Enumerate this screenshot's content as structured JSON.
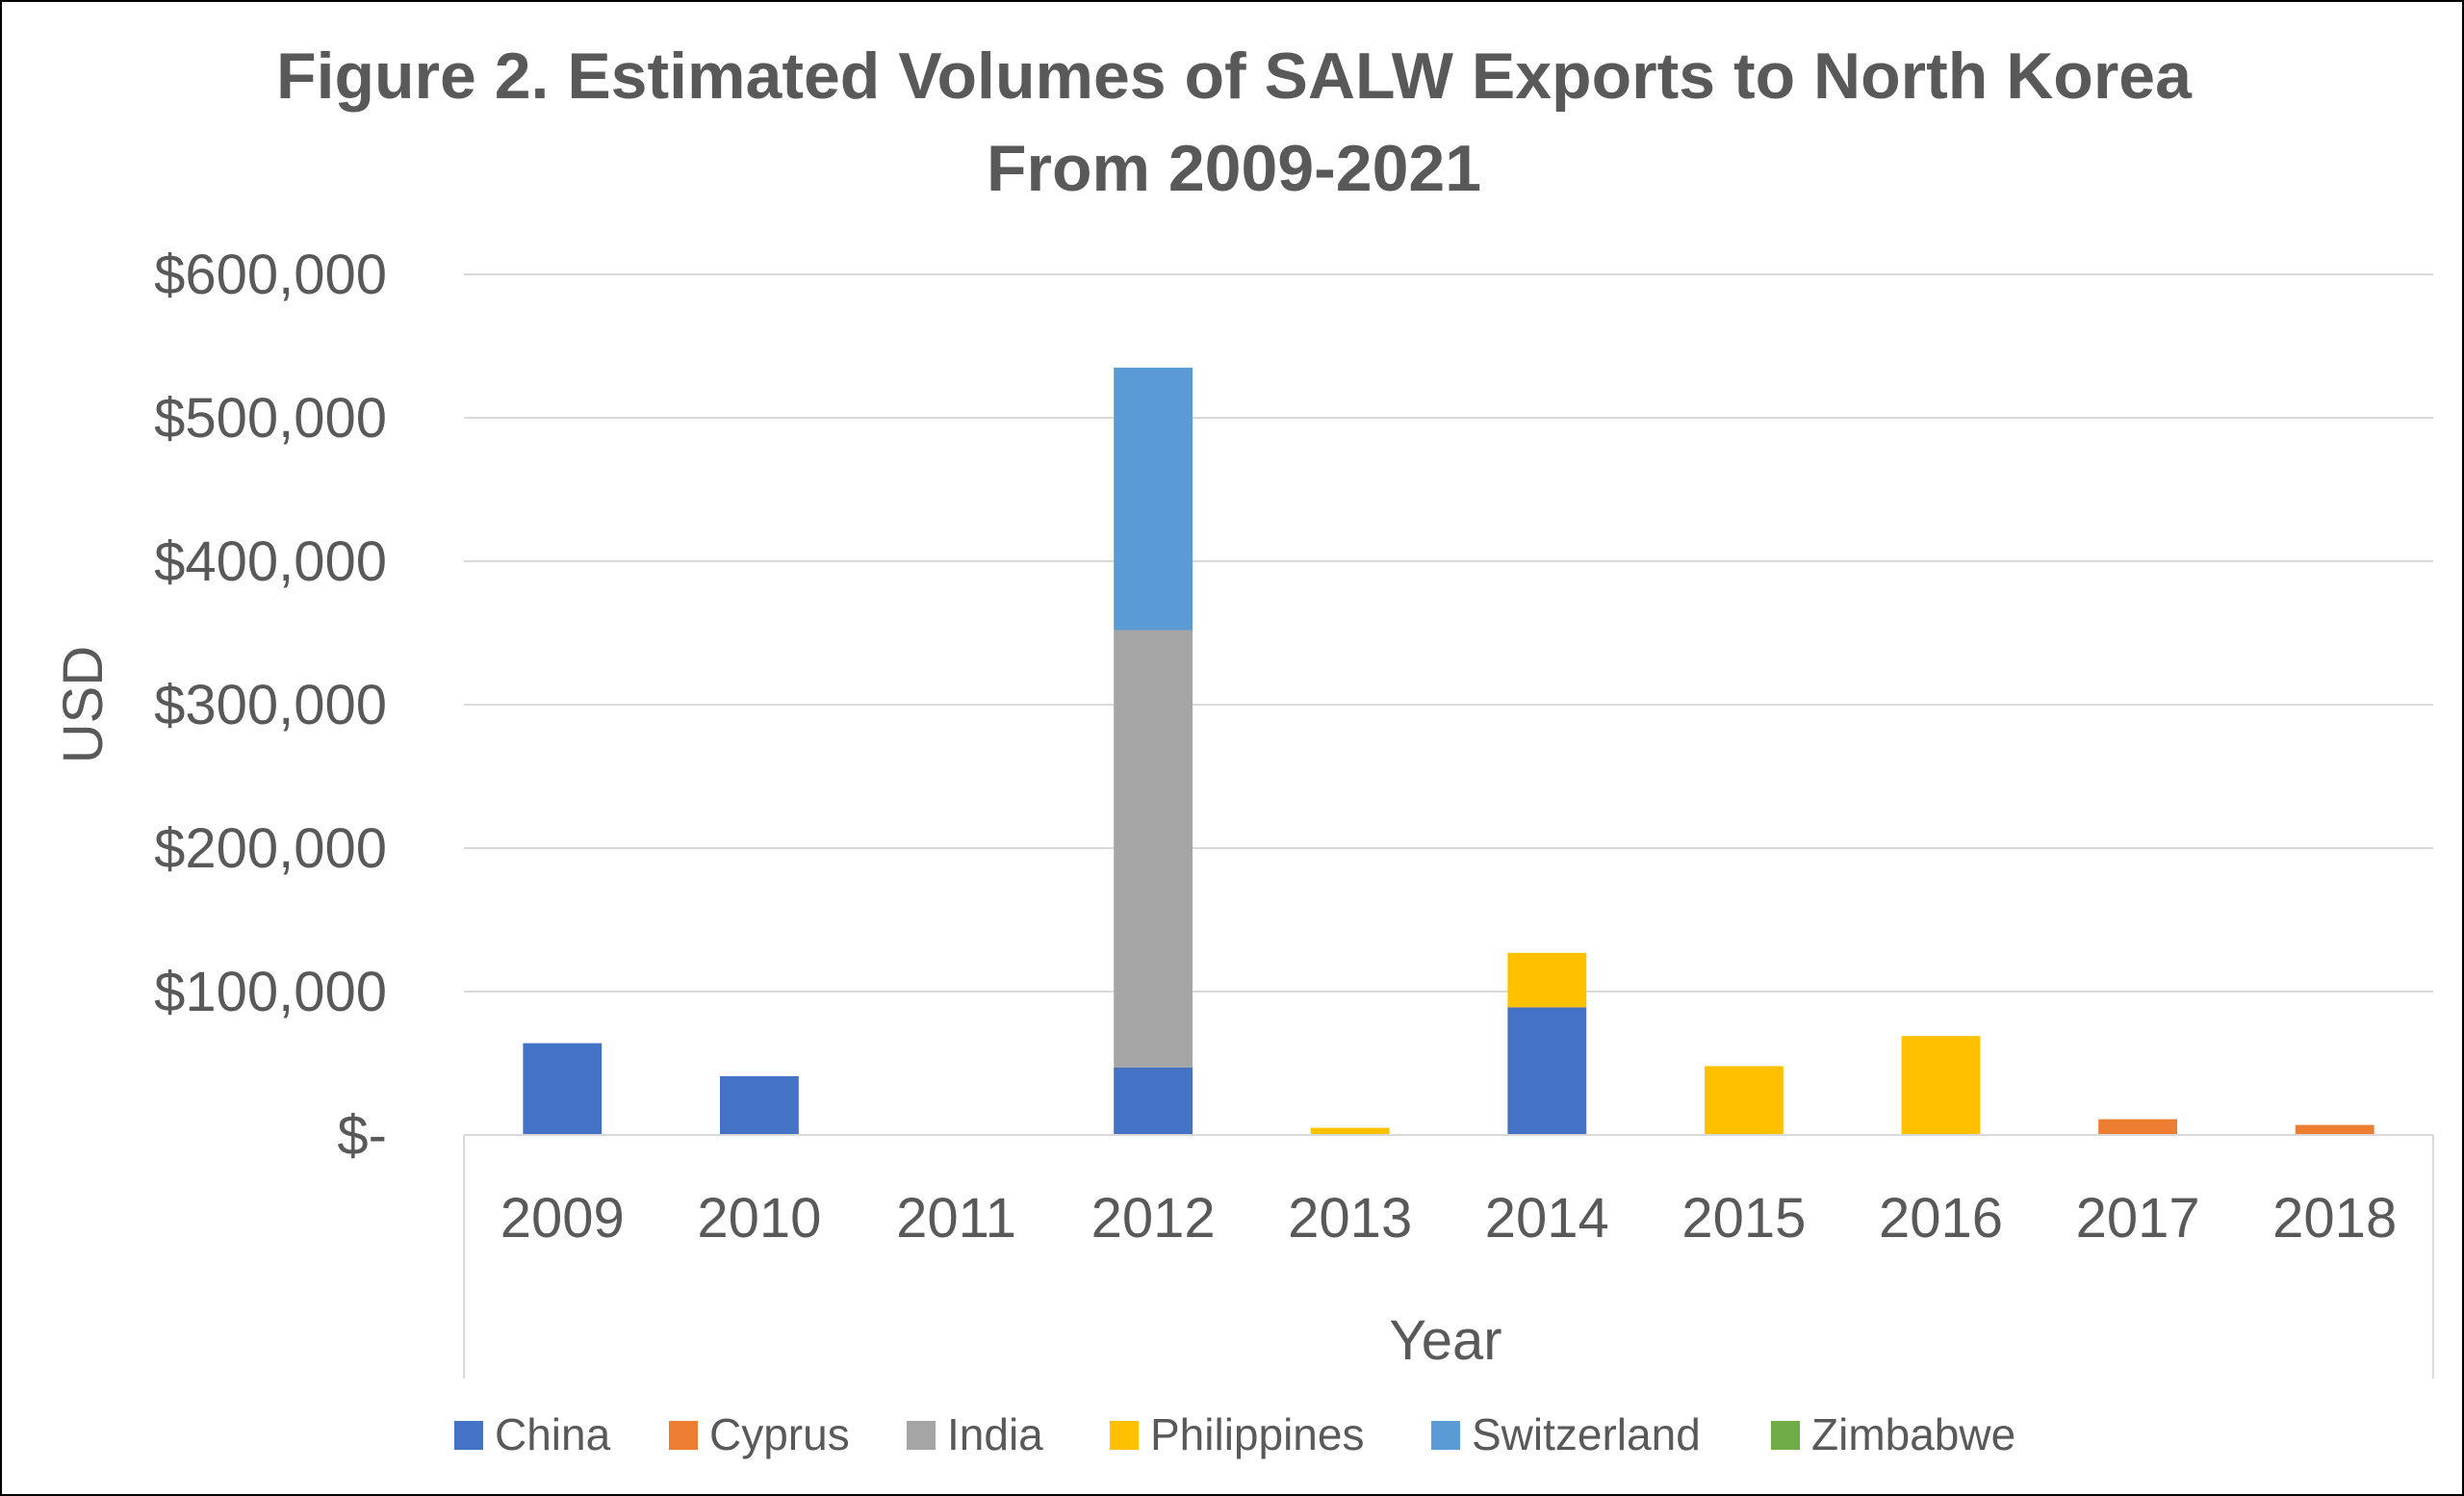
{
  "chart_data": {
    "type": "bar",
    "stacked": true,
    "title": "Figure 2. Estimated Volumes of SALW Exports to North Korea From 2009-2021",
    "title_lines": [
      "Figure 2. Estimated Volumes of SALW Exports to North Korea",
      "From 2009-2021"
    ],
    "xlabel": "Year",
    "ylabel": "USD",
    "categories": [
      "2009",
      "2010",
      "2011",
      "2012",
      "2013",
      "2014",
      "2015",
      "2016",
      "2017",
      "2018"
    ],
    "y_tick_labels": [
      "$-",
      "$100,000",
      "$200,000",
      "$300,000",
      "$400,000",
      "$500,000",
      "$600,000"
    ],
    "y_tick_values": [
      0,
      100000,
      200000,
      300000,
      400000,
      500000,
      600000
    ],
    "ylim": [
      0,
      600000
    ],
    "grid": true,
    "legend_position": "bottom",
    "series": [
      {
        "name": "China",
        "color": "#4472C4",
        "values": [
          64000,
          41000,
          0,
          47000,
          0,
          89000,
          0,
          0,
          0,
          0
        ]
      },
      {
        "name": "Cyprus",
        "color": "#ED7D31",
        "values": [
          0,
          0,
          0,
          0,
          0,
          0,
          0,
          0,
          11000,
          7000
        ]
      },
      {
        "name": "India",
        "color": "#A5A5A5",
        "values": [
          0,
          0,
          0,
          305000,
          0,
          0,
          0,
          0,
          0,
          0
        ]
      },
      {
        "name": "Philippines",
        "color": "#FFC000",
        "values": [
          0,
          0,
          0,
          0,
          5000,
          38000,
          48000,
          69000,
          0,
          0
        ]
      },
      {
        "name": "Switzerland",
        "color": "#5B9BD5",
        "values": [
          0,
          0,
          0,
          183000,
          0,
          0,
          0,
          0,
          0,
          0
        ]
      },
      {
        "name": "Zimbabwe",
        "color": "#70AD47",
        "values": [
          0,
          0,
          0,
          0,
          0,
          0,
          0,
          0,
          0,
          0
        ]
      }
    ]
  }
}
